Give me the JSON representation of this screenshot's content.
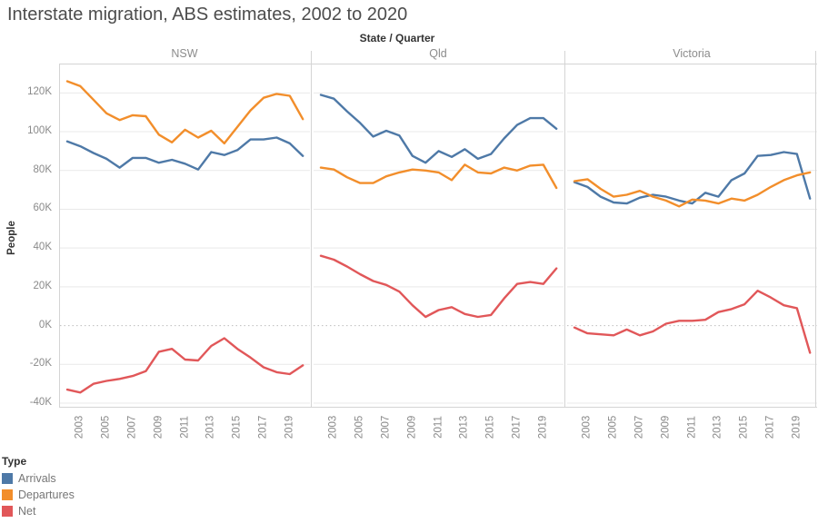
{
  "title": "Interstate migration, ABS estimates, 2002 to 2020",
  "field_label": "State / Quarter",
  "colors": {
    "arrivals": "#4e79a7",
    "departures": "#f28e2b",
    "net": "#e15759",
    "grid": "#e9e9e9",
    "zero_line": "#bdbdbd",
    "axis_line": "#d4d4d4",
    "tick_text": "#8a8a8a",
    "label_text": "#333333",
    "title_text": "#4c4c4c",
    "panel_text": "#8c8c8c"
  },
  "y_axis": {
    "title": "People",
    "tick_labels": [
      "120K",
      "100K",
      "80K",
      "60K",
      "40K",
      "20K",
      "0K",
      "-20K",
      "-40K"
    ],
    "tick_values": [
      120,
      100,
      80,
      60,
      40,
      20,
      0,
      -20,
      -40
    ]
  },
  "x_axis": {
    "tick_labels": [
      "2003",
      "2005",
      "2007",
      "2009",
      "2011",
      "2013",
      "2015",
      "2017",
      "2019"
    ],
    "tick_years": [
      2003,
      2005,
      2007,
      2009,
      2011,
      2013,
      2015,
      2017,
      2019
    ]
  },
  "legend": {
    "title": "Type",
    "items": [
      {
        "label": "Arrivals",
        "color": "#4e79a7"
      },
      {
        "label": "Departures",
        "color": "#f28e2b"
      },
      {
        "label": "Net",
        "color": "#e15759"
      }
    ]
  },
  "chart_data": {
    "type": "line",
    "title": "Interstate migration, ABS estimates, 2002 to 2020",
    "ylabel": "People",
    "unit": "thousands of people",
    "ylim": [
      -42.5,
      135
    ],
    "grid": true,
    "zero_line": "dotted",
    "legend_position": "bottom-left",
    "x": [
      2002,
      2003,
      2004,
      2005,
      2006,
      2007,
      2008,
      2009,
      2010,
      2011,
      2012,
      2013,
      2014,
      2015,
      2016,
      2017,
      2018,
      2019,
      2020
    ],
    "panels": [
      {
        "name": "NSW",
        "series": [
          {
            "name": "Arrivals",
            "values": [
              95,
              92.5,
              89,
              86,
              81.5,
              86.5,
              86.5,
              84,
              85.5,
              83.5,
              80.5,
              89.5,
              88,
              90.5,
              96,
              96,
              97,
              94,
              87.5
            ]
          },
          {
            "name": "Departures",
            "values": [
              126,
              123.5,
              116.5,
              109.5,
              106,
              108.5,
              108,
              98.5,
              94.5,
              101,
              97,
              100.5,
              94,
              102.5,
              111,
              117.5,
              119.5,
              118.5,
              106.5
            ]
          },
          {
            "name": "Net",
            "values": [
              -33,
              -34.5,
              -30,
              -28.5,
              -27.5,
              -26,
              -23.5,
              -13.5,
              -12,
              -17.5,
              -18,
              -10.5,
              -6.5,
              -12,
              -16.5,
              -21.5,
              -24,
              -25,
              -20.5
            ]
          }
        ]
      },
      {
        "name": "Qld",
        "series": [
          {
            "name": "Arrivals",
            "values": [
              119,
              117,
              110.5,
              104.5,
              97.5,
              100.5,
              98,
              87.5,
              84,
              90,
              87,
              91,
              86,
              88.5,
              96.5,
              103.5,
              107,
              107,
              101.5
            ]
          },
          {
            "name": "Departures",
            "values": [
              81.5,
              80.5,
              76.5,
              73.5,
              73.5,
              77,
              79,
              80.5,
              80,
              79,
              75,
              83,
              79,
              78.5,
              81.5,
              80,
              82.5,
              83,
              71
            ]
          },
          {
            "name": "Net",
            "values": [
              36,
              34,
              30.5,
              26.5,
              23,
              21,
              17.5,
              10.5,
              4.5,
              8,
              9.5,
              6,
              4.5,
              5.5,
              14,
              21.5,
              22.5,
              21.5,
              29.5
            ]
          }
        ]
      },
      {
        "name": "Victoria",
        "series": [
          {
            "name": "Arrivals",
            "values": [
              74,
              71.5,
              66.5,
              63.5,
              63,
              66,
              67.5,
              66.5,
              64.5,
              63,
              68.5,
              66.5,
              75,
              78.5,
              87.5,
              88,
              89.5,
              88.5,
              65.5
            ]
          },
          {
            "name": "Departures",
            "values": [
              74.5,
              75.5,
              70.5,
              66.5,
              67.5,
              69.5,
              66.5,
              64.5,
              61.5,
              65,
              64.5,
              63,
              65.5,
              64.5,
              67.5,
              71.5,
              75,
              77.5,
              79
            ]
          },
          {
            "name": "Net",
            "values": [
              -1,
              -4,
              -4.5,
              -5,
              -2,
              -5,
              -3,
              1,
              2.5,
              2.5,
              3,
              7,
              8.5,
              11,
              18,
              14.5,
              10.5,
              9,
              -14
            ]
          }
        ]
      }
    ]
  }
}
